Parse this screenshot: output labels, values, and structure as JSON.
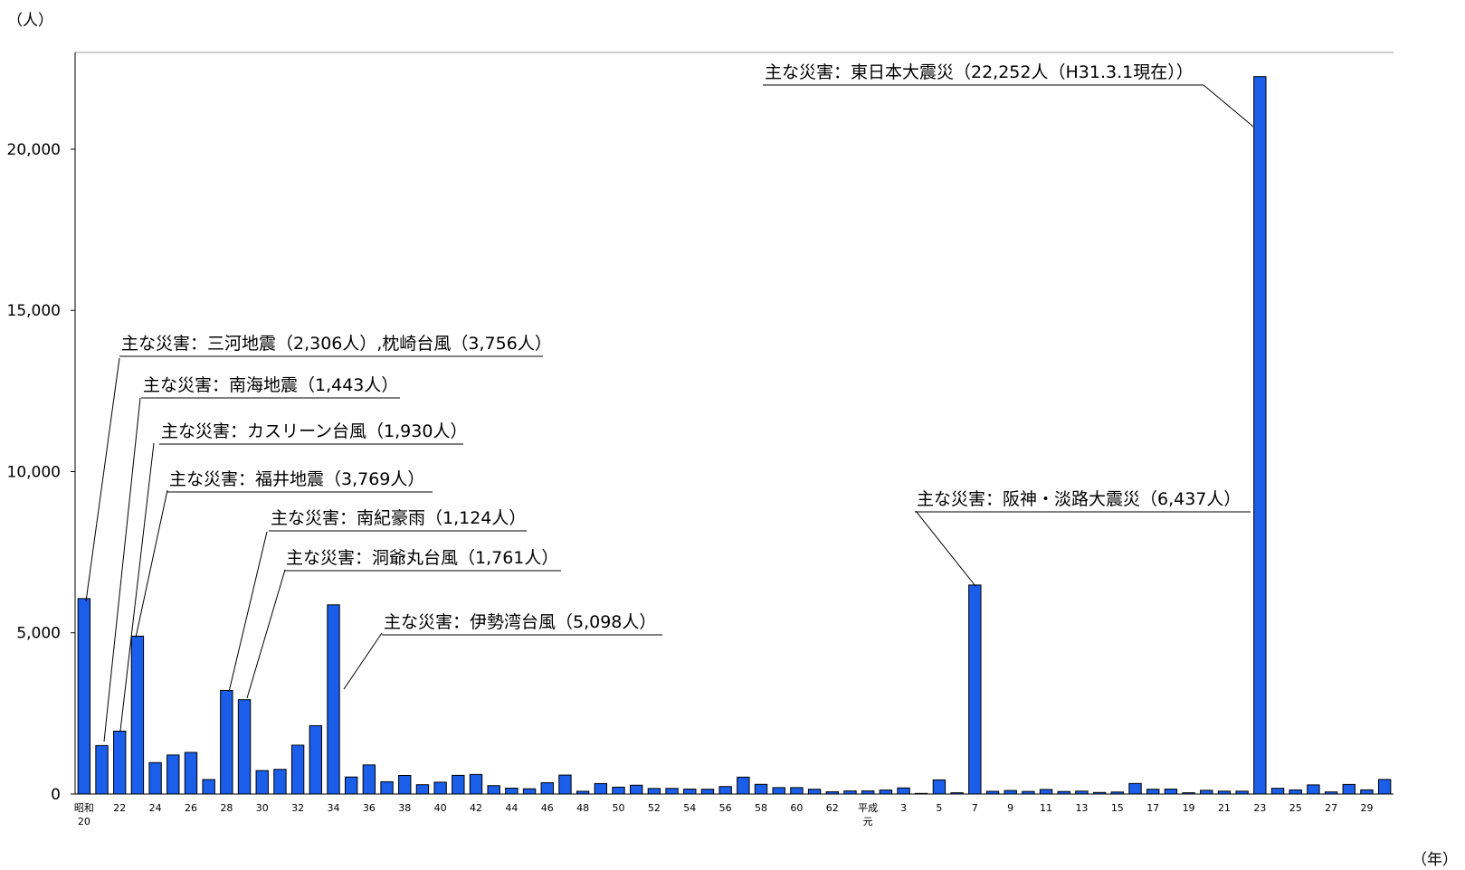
{
  "chart_data": {
    "type": "bar",
    "y_unit_label": "（人）",
    "x_unit_label": "（年）",
    "ylim": [
      0,
      23000
    ],
    "y_ticks": [
      0,
      5000,
      10000,
      15000,
      20000
    ],
    "y_tick_labels": [
      "0",
      "5,000",
      "10,000",
      "15,000",
      "20,000"
    ],
    "grid": false,
    "bar_color": "#1a5eea",
    "categories": [
      "昭和20",
      "21",
      "22",
      "23",
      "24",
      "25",
      "26",
      "27",
      "28",
      "29",
      "30",
      "31",
      "32",
      "33",
      "34",
      "35",
      "36",
      "37",
      "38",
      "39",
      "40",
      "41",
      "42",
      "43",
      "44",
      "45",
      "46",
      "47",
      "48",
      "49",
      "50",
      "51",
      "52",
      "53",
      "54",
      "55",
      "56",
      "57",
      "58",
      "59",
      "60",
      "61",
      "62",
      "63",
      "平成元",
      "2",
      "3",
      "4",
      "5",
      "6",
      "7",
      "8",
      "9",
      "10",
      "11",
      "12",
      "13",
      "14",
      "15",
      "16",
      "17",
      "18",
      "19",
      "20",
      "21",
      "22",
      "23",
      "24",
      "25",
      "26",
      "27",
      "28",
      "29",
      "30"
    ],
    "x_tick_labels": [
      {
        "index": 0,
        "lines": [
          "昭和",
          "20"
        ]
      },
      {
        "index": 2,
        "lines": [
          "22"
        ]
      },
      {
        "index": 4,
        "lines": [
          "24"
        ]
      },
      {
        "index": 6,
        "lines": [
          "26"
        ]
      },
      {
        "index": 8,
        "lines": [
          "28"
        ]
      },
      {
        "index": 10,
        "lines": [
          "30"
        ]
      },
      {
        "index": 12,
        "lines": [
          "32"
        ]
      },
      {
        "index": 14,
        "lines": [
          "34"
        ]
      },
      {
        "index": 16,
        "lines": [
          "36"
        ]
      },
      {
        "index": 18,
        "lines": [
          "38"
        ]
      },
      {
        "index": 20,
        "lines": [
          "40"
        ]
      },
      {
        "index": 22,
        "lines": [
          "42"
        ]
      },
      {
        "index": 24,
        "lines": [
          "44"
        ]
      },
      {
        "index": 26,
        "lines": [
          "46"
        ]
      },
      {
        "index": 28,
        "lines": [
          "48"
        ]
      },
      {
        "index": 30,
        "lines": [
          "50"
        ]
      },
      {
        "index": 32,
        "lines": [
          "52"
        ]
      },
      {
        "index": 34,
        "lines": [
          "54"
        ]
      },
      {
        "index": 36,
        "lines": [
          "56"
        ]
      },
      {
        "index": 38,
        "lines": [
          "58"
        ]
      },
      {
        "index": 40,
        "lines": [
          "60"
        ]
      },
      {
        "index": 42,
        "lines": [
          "62"
        ]
      },
      {
        "index": 44,
        "lines": [
          "平成",
          "元"
        ]
      },
      {
        "index": 46,
        "lines": [
          "3"
        ]
      },
      {
        "index": 48,
        "lines": [
          "5"
        ]
      },
      {
        "index": 50,
        "lines": [
          "7"
        ]
      },
      {
        "index": 52,
        "lines": [
          "9"
        ]
      },
      {
        "index": 54,
        "lines": [
          "11"
        ]
      },
      {
        "index": 56,
        "lines": [
          "13"
        ]
      },
      {
        "index": 58,
        "lines": [
          "15"
        ]
      },
      {
        "index": 60,
        "lines": [
          "17"
        ]
      },
      {
        "index": 62,
        "lines": [
          "19"
        ]
      },
      {
        "index": 64,
        "lines": [
          "21"
        ]
      },
      {
        "index": 66,
        "lines": [
          "23"
        ]
      },
      {
        "index": 68,
        "lines": [
          "25"
        ]
      },
      {
        "index": 70,
        "lines": [
          "27"
        ]
      },
      {
        "index": 72,
        "lines": [
          "29"
        ]
      }
    ],
    "values": [
      6062,
      1504,
      1950,
      4897,
      975,
      1210,
      1291,
      449,
      3212,
      2926,
      727,
      765,
      1515,
      2120,
      5868,
      528,
      902,
      381,
      575,
      289,
      367,
      578,
      607,
      259,
      183,
      163,
      350,
      587,
      85,
      324,
      213,
      273,
      172,
      174,
      153,
      148,
      232,
      524,
      301,
      199,
      199,
      148,
      69,
      96,
      96,
      123,
      190,
      19,
      439,
      39,
      6482,
      84,
      109,
      80,
      141,
      78,
      90,
      48,
      62,
      327,
      148,
      153,
      39,
      115,
      89,
      89,
      22252,
      178,
      127,
      283,
      65,
      297,
      129,
      452
    ],
    "annotations": [
      {
        "text": "主な災害：三河地震（2,306人）,枕崎台風（3,756人）",
        "index": 0
      },
      {
        "text": "主な災害：南海地震（1,443人）",
        "index": 1
      },
      {
        "text": "主な災害：カスリーン台風（1,930人）",
        "index": 2
      },
      {
        "text": "主な災害：福井地震（3,769人）",
        "index": 3
      },
      {
        "text": "主な災害：南紀豪雨（1,124人）",
        "index": 8
      },
      {
        "text": "主な災害：洞爺丸台風（1,761人）",
        "index": 9
      },
      {
        "text": "主な災害：伊勢湾台風（5,098人）",
        "index": 14
      },
      {
        "text": "主な災害：阪神・淡路大震災（6,437人）",
        "index": 50
      },
      {
        "text": "主な災害：東日本大震災（22,252人（H31.3.1現在））",
        "index": 66
      }
    ]
  }
}
